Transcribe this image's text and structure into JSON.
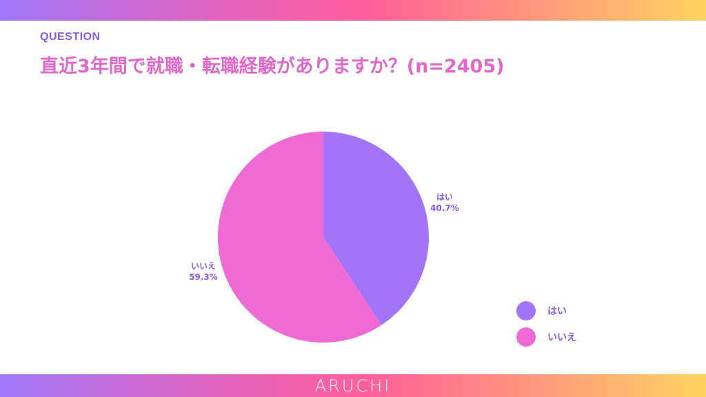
{
  "header": {
    "label": "QUESTION",
    "title": "直近3年間で就職・転職経験がありますか？(n=2405)"
  },
  "footer": {
    "brand": "ARUCHI"
  },
  "chart_data": {
    "type": "pie",
    "title": "直近3年間で就職・転職経験がありますか？(n=2405)",
    "categories": [
      "はい",
      "いいえ"
    ],
    "values": [
      40.7,
      59.3
    ],
    "value_labels": [
      "40.7%",
      "59.3%"
    ],
    "colors": [
      "#a374f7",
      "#ee6ad4"
    ],
    "start": "top",
    "direction": "clockwise",
    "legend": "bottom-right"
  }
}
